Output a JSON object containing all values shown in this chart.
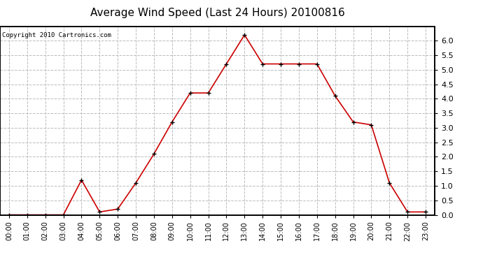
{
  "title": "Average Wind Speed (Last 24 Hours) 20100816",
  "copyright_text": "Copyright 2010 Cartronics.com",
  "hours": [
    "00:00",
    "01:00",
    "02:00",
    "03:00",
    "04:00",
    "05:00",
    "06:00",
    "07:00",
    "08:00",
    "09:00",
    "10:00",
    "11:00",
    "12:00",
    "13:00",
    "14:00",
    "15:00",
    "16:00",
    "17:00",
    "18:00",
    "19:00",
    "20:00",
    "21:00",
    "22:00",
    "23:00"
  ],
  "values": [
    0.0,
    0.0,
    0.0,
    0.0,
    1.2,
    0.1,
    0.2,
    1.1,
    2.1,
    3.2,
    4.2,
    4.2,
    5.2,
    6.2,
    5.2,
    5.2,
    5.2,
    5.2,
    4.1,
    3.2,
    3.1,
    1.1,
    0.1,
    0.1
  ],
  "ylim": [
    0.0,
    6.5
  ],
  "yticks": [
    0.0,
    0.5,
    1.0,
    1.5,
    2.0,
    2.5,
    3.0,
    3.5,
    4.0,
    4.5,
    5.0,
    5.5,
    6.0
  ],
  "line_color": "#cc0000",
  "marker": "+",
  "marker_color": "#000000",
  "grid_color": "#bbbbbb",
  "background_color": "#ffffff",
  "title_fontsize": 11,
  "copyright_fontsize": 6.5,
  "tick_fontsize": 7,
  "ytick_fontsize": 8
}
